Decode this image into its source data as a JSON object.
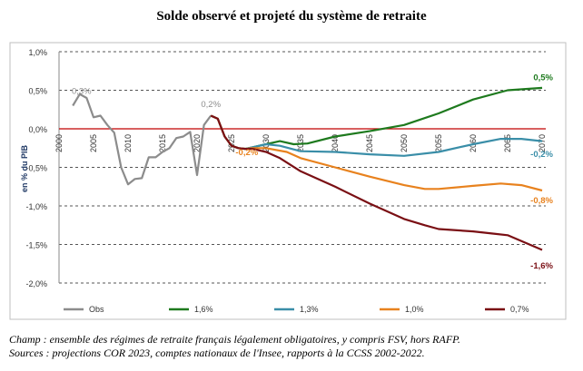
{
  "title": "Solde observé et projeté du système de retraite",
  "notes": [
    "Champ : ensemble des régimes de retraite français légalement obligatoires, y compris FSV, hors RAFP.",
    "Sources : projections COR 2023, comptes nationaux de l'Insee, rapports à la CCSS 2002-2022."
  ],
  "chart_data": {
    "type": "line",
    "title": "Solde observé et projeté du système de retraite",
    "ylabel": "en % du PIB",
    "xlim": [
      2000,
      2070
    ],
    "ylim": [
      -2.0,
      1.0
    ],
    "yticks": [
      "1,0%",
      "0,5%",
      "0,0%",
      "-0,5%",
      "-1,0%",
      "-1,5%",
      "-2,0%"
    ],
    "ytick_values": [
      1.0,
      0.5,
      0.0,
      -0.5,
      -1.0,
      -1.5,
      -2.0
    ],
    "xticks": [
      "2000",
      "2005",
      "2010",
      "2015",
      "2020",
      "2025",
      "2030",
      "2035",
      "2040",
      "2045",
      "2050",
      "2055",
      "2060",
      "2065",
      "2070"
    ],
    "grid": "horizontal dashed",
    "legend": "bottom",
    "series": [
      {
        "name": "Obs",
        "color": "#8c8c8c",
        "x": [
          2002,
          2003,
          2004,
          2005,
          2006,
          2007,
          2008,
          2009,
          2010,
          2011,
          2012,
          2013,
          2014,
          2015,
          2016,
          2017,
          2018,
          2019,
          2020,
          2021,
          2022
        ],
        "y": [
          0.3,
          0.45,
          0.4,
          0.15,
          0.17,
          0.05,
          -0.05,
          -0.5,
          -0.72,
          -0.65,
          -0.64,
          -0.37,
          -0.37,
          -0.3,
          -0.25,
          -0.12,
          -0.1,
          -0.04,
          -0.6,
          0.05,
          0.17
        ]
      },
      {
        "name": "1,6%",
        "color": "#1e7a1e",
        "x": [
          2022,
          2023,
          2024,
          2025,
          2026,
          2027,
          2028,
          2030,
          2032,
          2034,
          2036,
          2040,
          2045,
          2050,
          2055,
          2060,
          2065,
          2070
        ],
        "y": [
          0.17,
          0.13,
          -0.1,
          -0.22,
          -0.25,
          -0.26,
          -0.24,
          -0.2,
          -0.16,
          -0.2,
          -0.19,
          -0.1,
          -0.03,
          0.05,
          0.2,
          0.38,
          0.5,
          0.53
        ]
      },
      {
        "name": "1,3%",
        "color": "#3a8ea8",
        "x": [
          2022,
          2023,
          2024,
          2025,
          2026,
          2027,
          2028,
          2030,
          2032,
          2035,
          2040,
          2045,
          2050,
          2055,
          2060,
          2064,
          2067,
          2070
        ],
        "y": [
          0.17,
          0.13,
          -0.1,
          -0.22,
          -0.25,
          -0.26,
          -0.24,
          -0.2,
          -0.22,
          -0.29,
          -0.3,
          -0.33,
          -0.35,
          -0.3,
          -0.2,
          -0.13,
          -0.13,
          -0.16
        ]
      },
      {
        "name": "1,0%",
        "color": "#e8821e",
        "x": [
          2022,
          2023,
          2024,
          2025,
          2026,
          2027,
          2028,
          2030,
          2033,
          2035,
          2040,
          2045,
          2050,
          2053,
          2055,
          2060,
          2064,
          2067,
          2070
        ],
        "y": [
          0.17,
          0.13,
          -0.1,
          -0.22,
          -0.25,
          -0.26,
          -0.25,
          -0.25,
          -0.3,
          -0.38,
          -0.5,
          -0.62,
          -0.73,
          -0.78,
          -0.78,
          -0.74,
          -0.71,
          -0.73,
          -0.8
        ]
      },
      {
        "name": "0,7%",
        "color": "#7a0f14",
        "x": [
          2022,
          2023,
          2024,
          2025,
          2026,
          2027,
          2028,
          2030,
          2032,
          2035,
          2040,
          2045,
          2050,
          2053,
          2055,
          2060,
          2063,
          2065,
          2070
        ],
        "y": [
          0.17,
          0.13,
          -0.1,
          -0.22,
          -0.25,
          -0.26,
          -0.26,
          -0.3,
          -0.38,
          -0.55,
          -0.75,
          -0.97,
          -1.17,
          -1.25,
          -1.3,
          -1.33,
          -1.36,
          -1.38,
          -1.57
        ]
      }
    ],
    "annotations": [
      {
        "text": "0,3%",
        "x": 2003,
        "y": 0.3,
        "color": "#8c8c8c"
      },
      {
        "text": "0,2%",
        "x": 2022,
        "y": 0.2,
        "color": "#8c8c8c"
      },
      {
        "text": "-0,2%",
        "x": 2028,
        "y": -0.2,
        "color": "#e8821e"
      },
      {
        "text": "0,5%",
        "x": 2070,
        "y": 0.5,
        "color": "#1e7a1e"
      },
      {
        "text": "-0,2%",
        "x": 2070,
        "y": -0.2,
        "color": "#3a8ea8"
      },
      {
        "text": "-0,8%",
        "x": 2070,
        "y": -0.8,
        "color": "#e8821e"
      },
      {
        "text": "-1,6%",
        "x": 2070,
        "y": -1.6,
        "color": "#7a0f14"
      }
    ]
  }
}
